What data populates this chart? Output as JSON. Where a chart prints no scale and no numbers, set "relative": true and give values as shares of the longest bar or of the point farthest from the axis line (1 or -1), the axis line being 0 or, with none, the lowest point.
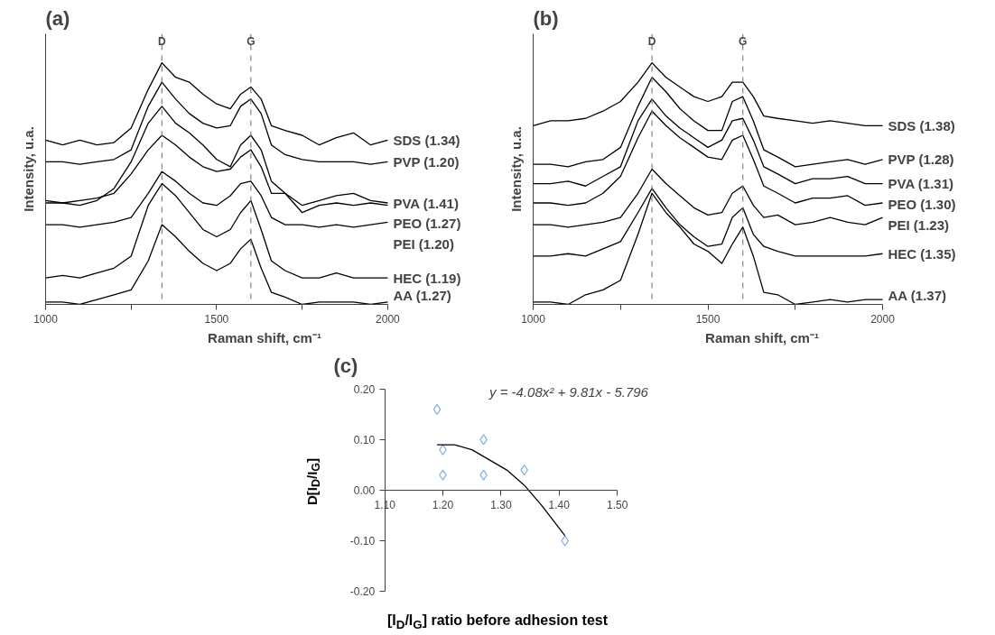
{
  "chart_data": [
    {
      "type": "line",
      "title": "(a)",
      "xlabel": "Raman shift, cm⁻¹",
      "ylabel": "Intensity, u.a.",
      "relative": true,
      "tick_labels": "x",
      "grid": false,
      "legend": false,
      "xlim": [
        1000,
        2000
      ],
      "xticks": [
        1000,
        {
          "value": 1250,
          "label": null
        },
        1500,
        {
          "value": 1750,
          "label": null
        },
        2000
      ],
      "x": [
        1000,
        1050,
        1100,
        1150,
        1200,
        1250,
        1300,
        1340,
        1380,
        1420,
        1460,
        1500,
        1540,
        1570,
        1600,
        1630,
        1660,
        1700,
        1750,
        1800,
        1850,
        1900,
        1950,
        2000
      ],
      "ref_lines": [
        {
          "axis": "x",
          "value": 1340,
          "label": "D",
          "color": "#808080",
          "line_style": "dashed"
        },
        {
          "axis": "x",
          "value": 1600,
          "label": "G",
          "color": "#808080",
          "line_style": "dashed"
        }
      ],
      "series": [
        {
          "name": "SDS (1.34)",
          "color": "#000000",
          "values": [
            0.68,
            0.66,
            0.68,
            0.66,
            0.67,
            0.73,
            0.89,
            1.0,
            0.94,
            0.92,
            0.87,
            0.83,
            0.81,
            0.87,
            0.9,
            0.85,
            0.74,
            0.72,
            0.7,
            0.66,
            0.69,
            0.71,
            0.66,
            0.68
          ]
        },
        {
          "name": "PVP (1.20)",
          "color": "#000000",
          "values": [
            0.59,
            0.59,
            0.58,
            0.59,
            0.6,
            0.64,
            0.82,
            0.92,
            0.85,
            0.79,
            0.75,
            0.73,
            0.74,
            0.82,
            0.85,
            0.79,
            0.66,
            0.62,
            0.6,
            0.59,
            0.59,
            0.59,
            0.58,
            0.59
          ]
        },
        {
          "name": "PVA (1.41)",
          "color": "#000000",
          "values": [
            0.42,
            0.42,
            0.41,
            0.43,
            0.48,
            0.59,
            0.75,
            0.82,
            0.75,
            0.71,
            0.66,
            0.6,
            0.57,
            0.66,
            0.7,
            0.64,
            0.51,
            0.46,
            0.41,
            0.43,
            0.45,
            0.46,
            0.43,
            0.42
          ]
        },
        {
          "name": "PEO (1.27)",
          "color": "#000000",
          "values": [
            0.43,
            0.42,
            0.43,
            0.44,
            0.46,
            0.54,
            0.64,
            0.7,
            0.66,
            0.61,
            0.57,
            0.55,
            0.56,
            0.61,
            0.64,
            0.57,
            0.46,
            0.46,
            0.38,
            0.41,
            0.42,
            0.41,
            0.42,
            0.41
          ]
        },
        {
          "name": "PEI (1.20)",
          "color": "#000000",
          "values": [
            0.33,
            0.33,
            0.32,
            0.33,
            0.34,
            0.36,
            0.46,
            0.55,
            0.51,
            0.46,
            0.42,
            0.41,
            0.45,
            0.5,
            0.51,
            0.45,
            0.36,
            0.33,
            0.33,
            0.32,
            0.33,
            0.32,
            0.33,
            0.34
          ]
        },
        {
          "name": "HEC (1.19)",
          "color": "#000000",
          "values": [
            0.11,
            0.12,
            0.11,
            0.13,
            0.15,
            0.2,
            0.41,
            0.5,
            0.45,
            0.38,
            0.31,
            0.28,
            0.31,
            0.38,
            0.43,
            0.31,
            0.18,
            0.14,
            0.11,
            0.11,
            0.13,
            0.11,
            0.11,
            0.11
          ]
        },
        {
          "name": "AA (1.27)",
          "color": "#000000",
          "values": [
            0.01,
            0.01,
            0.0,
            0.02,
            0.04,
            0.06,
            0.18,
            0.33,
            0.28,
            0.22,
            0.17,
            0.14,
            0.17,
            0.23,
            0.27,
            0.15,
            0.05,
            0.03,
            0.0,
            0.01,
            0.01,
            0.01,
            0.0,
            0.01
          ]
        }
      ]
    },
    {
      "type": "line",
      "title": "(b)",
      "xlabel": "Raman shift, cm⁻¹",
      "ylabel": "Intensity, u.a.",
      "relative": true,
      "tick_labels": "x",
      "grid": false,
      "legend": false,
      "xlim": [
        1000,
        2000
      ],
      "xticks": [
        1000,
        {
          "value": 1250,
          "label": null
        },
        1500,
        {
          "value": 1750,
          "label": null
        },
        2000
      ],
      "x": [
        1000,
        1050,
        1100,
        1150,
        1200,
        1250,
        1300,
        1340,
        1380,
        1420,
        1460,
        1500,
        1540,
        1570,
        1600,
        1630,
        1660,
        1700,
        1750,
        1800,
        1850,
        1900,
        1950,
        2000
      ],
      "ref_lines": [
        {
          "axis": "x",
          "value": 1340,
          "label": "D",
          "color": "#808080",
          "line_style": "dashed"
        },
        {
          "axis": "x",
          "value": 1600,
          "label": "G",
          "color": "#808080",
          "line_style": "dashed"
        }
      ],
      "series": [
        {
          "name": "SDS (1.38)",
          "color": "#000000",
          "values": [
            0.74,
            0.76,
            0.76,
            0.77,
            0.8,
            0.84,
            0.92,
            1.0,
            0.94,
            0.9,
            0.86,
            0.84,
            0.86,
            0.92,
            0.92,
            0.86,
            0.78,
            0.77,
            0.76,
            0.75,
            0.76,
            0.75,
            0.74,
            0.74
          ]
        },
        {
          "name": "PVP (1.28)",
          "color": "#000000",
          "values": [
            0.58,
            0.58,
            0.57,
            0.59,
            0.6,
            0.65,
            0.82,
            0.94,
            0.88,
            0.81,
            0.76,
            0.72,
            0.72,
            0.84,
            0.86,
            0.76,
            0.64,
            0.61,
            0.57,
            0.58,
            0.59,
            0.6,
            0.58,
            0.6
          ]
        },
        {
          "name": "PVA (1.31)",
          "color": "#000000",
          "values": [
            0.5,
            0.5,
            0.51,
            0.49,
            0.53,
            0.57,
            0.76,
            0.85,
            0.78,
            0.73,
            0.69,
            0.65,
            0.68,
            0.76,
            0.77,
            0.68,
            0.57,
            0.54,
            0.5,
            0.52,
            0.52,
            0.53,
            0.5,
            0.5
          ]
        },
        {
          "name": "PEO (1.30)",
          "color": "#000000",
          "values": [
            0.42,
            0.42,
            0.41,
            0.42,
            0.46,
            0.53,
            0.69,
            0.8,
            0.74,
            0.69,
            0.65,
            0.61,
            0.6,
            0.68,
            0.7,
            0.6,
            0.49,
            0.46,
            0.42,
            0.44,
            0.44,
            0.45,
            0.41,
            0.42
          ]
        },
        {
          "name": "PEI (1.23)",
          "color": "#000000",
          "values": [
            0.33,
            0.33,
            0.32,
            0.33,
            0.34,
            0.36,
            0.46,
            0.56,
            0.5,
            0.45,
            0.4,
            0.37,
            0.38,
            0.46,
            0.49,
            0.41,
            0.36,
            0.37,
            0.33,
            0.34,
            0.36,
            0.34,
            0.33,
            0.36
          ]
        },
        {
          "name": "HEC (1.35)",
          "color": "#000000",
          "values": [
            0.2,
            0.2,
            0.21,
            0.2,
            0.23,
            0.26,
            0.38,
            0.48,
            0.4,
            0.33,
            0.28,
            0.24,
            0.25,
            0.36,
            0.4,
            0.29,
            0.24,
            0.22,
            0.2,
            0.2,
            0.2,
            0.2,
            0.2,
            0.21
          ]
        },
        {
          "name": "AA (1.37)",
          "color": "#000000",
          "values": [
            0.01,
            0.01,
            0.0,
            0.04,
            0.06,
            0.1,
            0.29,
            0.46,
            0.38,
            0.32,
            0.25,
            0.22,
            0.17,
            0.25,
            0.32,
            0.2,
            0.05,
            0.04,
            0.0,
            0.01,
            0.02,
            0.01,
            0.02,
            0.02
          ]
        }
      ]
    },
    {
      "type": "scatter",
      "title": "(c)",
      "xlabel": "[I$_{D}$/I$_{G}$] ratio before adhesion test",
      "ylabel": "D[I$_{D}$/I$_{G}$]",
      "grid": false,
      "legend": false,
      "xlim": [
        1.1,
        1.5
      ],
      "xticks": [
        {
          "value": 1.1,
          "label": "1.10"
        },
        {
          "value": 1.2,
          "label": "1.20"
        },
        {
          "value": 1.3,
          "label": "1.30"
        },
        {
          "value": 1.4,
          "label": "1.40"
        },
        {
          "value": 1.5,
          "label": "1.50"
        }
      ],
      "ylim": [
        -0.2,
        0.2
      ],
      "yticks": [
        {
          "value": -0.2,
          "label": "-0.20"
        },
        {
          "value": -0.1,
          "label": "-0.10"
        },
        {
          "value": 0,
          "label": "0.00"
        },
        {
          "value": 0.1,
          "label": "0.10"
        },
        {
          "value": 0.2,
          "label": "0.20"
        }
      ],
      "annotations": [
        "y = -4.08x² + 9.81x - 5.796"
      ],
      "series": [
        {
          "type": "scatter",
          "marker": "diamond",
          "color": "#8db3e2",
          "x": [
            1.19,
            1.2,
            1.2,
            1.27,
            1.27,
            1.34,
            1.41
          ],
          "values": [
            0.16,
            0.08,
            0.03,
            0.1,
            0.03,
            0.04,
            -0.1
          ]
        },
        {
          "type": "line",
          "color": "#000000",
          "x": [
            1.19,
            1.22,
            1.25,
            1.28,
            1.31,
            1.34,
            1.37,
            1.41
          ],
          "values": [
            0.09,
            0.09,
            0.08,
            0.06,
            0.04,
            0.01,
            -0.03,
            -0.09
          ]
        }
      ]
    }
  ]
}
